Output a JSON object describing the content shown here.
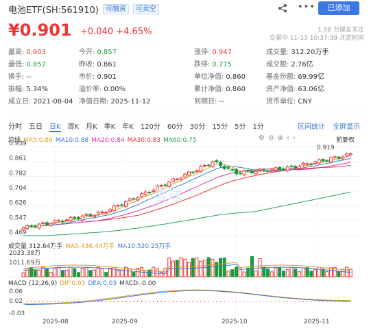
{
  "header": {
    "name": "电池ETF(SH:561910)",
    "tags": [
      "可融资",
      "可卖空"
    ],
    "add_label": "已添加"
  },
  "quote": {
    "price": "¥0.901",
    "change": "+0.040 +4.65%",
    "status_line1": "1.98 万球友关注",
    "status_line2": "交易中 11-13 10:37:39 北京时间"
  },
  "stats": [
    [
      {
        "label": "最高:",
        "value": "0.903",
        "color": "up"
      },
      {
        "label": "今开:",
        "value": "0.857",
        "color": "dn"
      },
      {
        "label": "涨停:",
        "value": "0.947",
        "color": "up"
      },
      {
        "label": "成交量:",
        "value": "312.20万手",
        "color": ""
      }
    ],
    [
      {
        "label": "最低:",
        "value": "0.857",
        "color": "dn"
      },
      {
        "label": "昨收:",
        "value": "0.861",
        "color": ""
      },
      {
        "label": "跌停:",
        "value": "0.775",
        "color": "dn"
      },
      {
        "label": "成交额:",
        "value": "2.76亿",
        "color": ""
      }
    ],
    [
      {
        "label": "换手:",
        "value": "--",
        "color": ""
      },
      {
        "label": "市价:",
        "value": "0.901",
        "color": ""
      },
      {
        "label": "单位净值:",
        "value": "0.860",
        "color": ""
      },
      {
        "label": "基金份额:",
        "value": "69.99亿",
        "color": ""
      }
    ],
    [
      {
        "label": "振幅:",
        "value": "5.34%",
        "color": ""
      },
      {
        "label": "溢价率:",
        "value": "0.00%",
        "color": ""
      },
      {
        "label": "累计净值:",
        "value": "0.860",
        "color": ""
      },
      {
        "label": "资产净值:",
        "value": "63.06亿",
        "color": ""
      }
    ],
    [
      {
        "label": "成立日:",
        "value": "2021-08-04",
        "color": ""
      },
      {
        "label": "净值日期:",
        "value": "2025-11-12",
        "color": ""
      },
      {
        "label": "到期日:",
        "value": "--",
        "color": ""
      },
      {
        "label": "货币单位:",
        "value": "CNY",
        "color": ""
      }
    ]
  ],
  "tabs": [
    "分时",
    "五日",
    "日K",
    "周K",
    "月K",
    "季K",
    "年K",
    "120分",
    "60分",
    "30分",
    "15分",
    "5分",
    "1分"
  ],
  "active_tab": "日K",
  "tabs_right": [
    "区间统计",
    "全屏显示"
  ],
  "ma": {
    "label": "均线",
    "items": [
      {
        "text": "MA5:0.89",
        "color": "#e39b1f"
      },
      {
        "text": "MA10:0.88",
        "color": "#3a78d6"
      },
      {
        "text": "MA20:0.84",
        "color": "#d6339e"
      },
      {
        "text": "MA30:0.83",
        "color": "#e33"
      },
      {
        "text": "MA60:0.75",
        "color": "#2aa05a"
      }
    ],
    "fq_label": "前复权"
  },
  "vol": {
    "label": "成交量 312.64万手",
    "items": [
      {
        "text": "MA5:436.44万手",
        "color": "#e39b1f"
      },
      {
        "text": "MA10:520.25万手",
        "color": "#3a78d6"
      }
    ],
    "ticks": [
      "2023.38万",
      "1011.69万"
    ]
  },
  "macd": {
    "label": "MACD (12,26,9)",
    "items": [
      {
        "text": "DIF:0.03",
        "color": "#e39b1f"
      },
      {
        "text": "DEA:0.03",
        "color": "#3a78d6"
      },
      {
        "text": "MACD:-0.00",
        "color": "#333"
      }
    ],
    "ticks": [
      "0.06",
      "0.02",
      "-0.03"
    ]
  },
  "chart_data": {
    "type": "candlestick",
    "y_ticks": [
      "0.939",
      "0.861",
      "0.782",
      "0.704",
      "0.626",
      "0.547",
      "0.469"
    ],
    "ylim": [
      0.469,
      0.939
    ],
    "x_labels": [
      "2025-08",
      "2025-09",
      "2025-10",
      "2025-11"
    ],
    "annotations": [
      "0.919"
    ],
    "watermark": "雪球"
  }
}
